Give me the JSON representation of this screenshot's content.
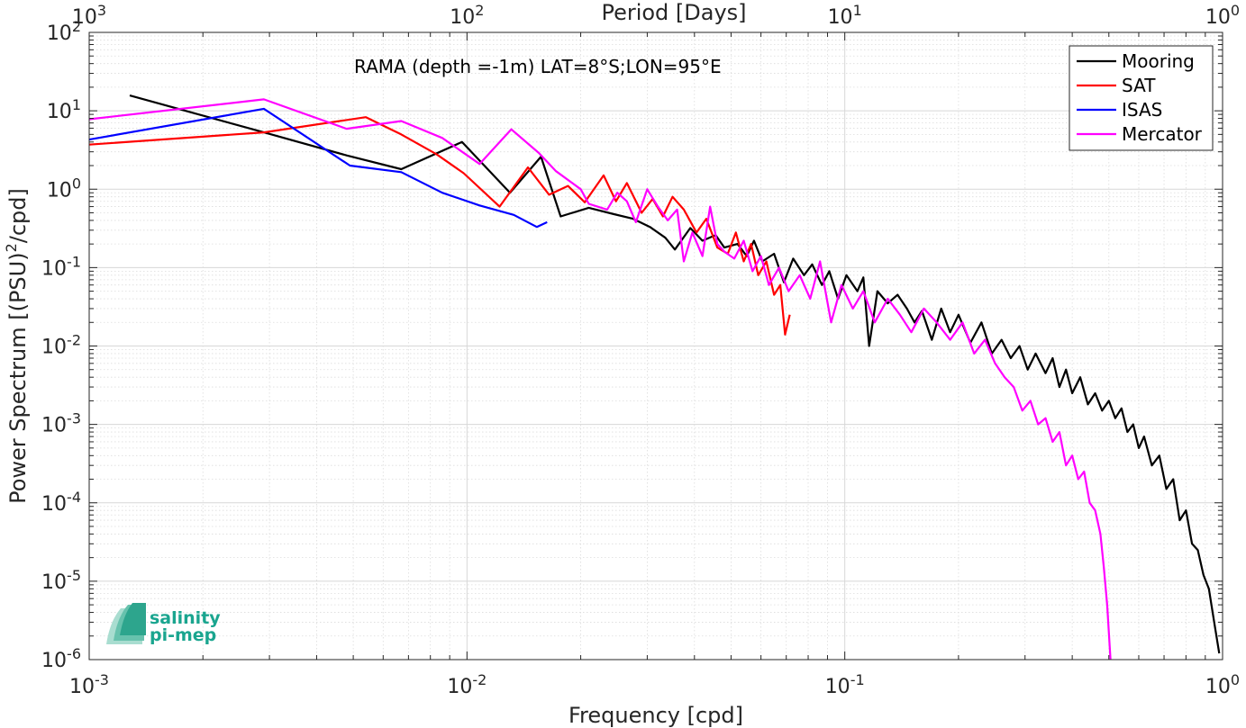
{
  "chart_data": {
    "type": "line",
    "annotation": "RAMA (depth =-1m) LAT=8°S;LON=95°E",
    "xlabel": "Frequency [cpd]",
    "ylabel": "Power Spectrum [(PSU)",
    "ylabel_sup": "2",
    "ylabel_tail": "/cpd]",
    "top_xlabel": "Period [Days]",
    "x_scale": "log",
    "y_scale": "log",
    "xlim": [
      0.001,
      1
    ],
    "ylim": [
      1e-06,
      100
    ],
    "top_xlim": [
      1000,
      1
    ],
    "grid": true,
    "legend_position": "top-right",
    "x_ticks": [
      {
        "value": 0.001,
        "base": "10",
        "exp": "-3"
      },
      {
        "value": 0.01,
        "base": "10",
        "exp": "-2"
      },
      {
        "value": 0.1,
        "base": "10",
        "exp": "-1"
      },
      {
        "value": 1,
        "base": "10",
        "exp": "0"
      }
    ],
    "top_ticks": [
      {
        "value": 0.001,
        "base": "10",
        "exp": "3"
      },
      {
        "value": 0.01,
        "base": "10",
        "exp": "2"
      },
      {
        "value": 0.1,
        "base": "10",
        "exp": "1"
      },
      {
        "value": 1,
        "base": "10",
        "exp": "0"
      }
    ],
    "y_ticks": [
      {
        "value": 100,
        "base": "10",
        "exp": "2"
      },
      {
        "value": 10,
        "base": "10",
        "exp": "1"
      },
      {
        "value": 1,
        "base": "10",
        "exp": "0"
      },
      {
        "value": 0.1,
        "base": "10",
        "exp": "-1"
      },
      {
        "value": 0.01,
        "base": "10",
        "exp": "-2"
      },
      {
        "value": 0.001,
        "base": "10",
        "exp": "-3"
      },
      {
        "value": 0.0001,
        "base": "10",
        "exp": "-4"
      },
      {
        "value": 1e-05,
        "base": "10",
        "exp": "-5"
      },
      {
        "value": 1e-06,
        "base": "10",
        "exp": "-6"
      }
    ],
    "series": [
      {
        "name": "Mooring",
        "color": "#000000",
        "points": [
          [
            0.00128,
            15.7
          ],
          [
            0.0029,
            5.3
          ],
          [
            0.0048,
            2.7
          ],
          [
            0.0067,
            1.8
          ],
          [
            0.0097,
            4.0
          ],
          [
            0.013,
            0.9
          ],
          [
            0.0157,
            2.6
          ],
          [
            0.0177,
            0.45
          ],
          [
            0.021,
            0.58
          ],
          [
            0.0245,
            0.48
          ],
          [
            0.0275,
            0.42
          ],
          [
            0.0305,
            0.33
          ],
          [
            0.0335,
            0.24
          ],
          [
            0.0355,
            0.17
          ],
          [
            0.039,
            0.32
          ],
          [
            0.042,
            0.22
          ],
          [
            0.0455,
            0.26
          ],
          [
            0.048,
            0.18
          ],
          [
            0.052,
            0.2
          ],
          [
            0.055,
            0.14
          ],
          [
            0.0575,
            0.22
          ],
          [
            0.0605,
            0.12
          ],
          [
            0.065,
            0.15
          ],
          [
            0.069,
            0.065
          ],
          [
            0.073,
            0.13
          ],
          [
            0.078,
            0.08
          ],
          [
            0.082,
            0.11
          ],
          [
            0.087,
            0.06
          ],
          [
            0.091,
            0.09
          ],
          [
            0.096,
            0.04
          ],
          [
            0.101,
            0.08
          ],
          [
            0.108,
            0.05
          ],
          [
            0.112,
            0.075
          ],
          [
            0.116,
            0.01
          ],
          [
            0.122,
            0.05
          ],
          [
            0.13,
            0.035
          ],
          [
            0.138,
            0.045
          ],
          [
            0.146,
            0.03
          ],
          [
            0.153,
            0.02
          ],
          [
            0.16,
            0.028
          ],
          [
            0.17,
            0.012
          ],
          [
            0.18,
            0.03
          ],
          [
            0.19,
            0.015
          ],
          [
            0.2,
            0.025
          ],
          [
            0.215,
            0.011
          ],
          [
            0.23,
            0.02
          ],
          [
            0.245,
            0.008
          ],
          [
            0.26,
            0.012
          ],
          [
            0.275,
            0.007
          ],
          [
            0.29,
            0.01
          ],
          [
            0.305,
            0.005
          ],
          [
            0.32,
            0.008
          ],
          [
            0.34,
            0.0045
          ],
          [
            0.355,
            0.007
          ],
          [
            0.37,
            0.003
          ],
          [
            0.385,
            0.005
          ],
          [
            0.4,
            0.0025
          ],
          [
            0.42,
            0.004
          ],
          [
            0.44,
            0.0018
          ],
          [
            0.46,
            0.0025
          ],
          [
            0.48,
            0.0015
          ],
          [
            0.5,
            0.002
          ],
          [
            0.52,
            0.0012
          ],
          [
            0.54,
            0.0016
          ],
          [
            0.56,
            0.0008
          ],
          [
            0.58,
            0.001
          ],
          [
            0.6,
            0.0005
          ],
          [
            0.62,
            0.0007
          ],
          [
            0.65,
            0.0003
          ],
          [
            0.68,
            0.0004
          ],
          [
            0.71,
            0.00015
          ],
          [
            0.74,
            0.0002
          ],
          [
            0.77,
            6e-05
          ],
          [
            0.8,
            8e-05
          ],
          [
            0.83,
            3e-05
          ],
          [
            0.86,
            2.5e-05
          ],
          [
            0.89,
            1.2e-05
          ],
          [
            0.92,
            8e-06
          ],
          [
            0.95,
            3e-06
          ],
          [
            0.98,
            1.2e-06
          ]
        ]
      },
      {
        "name": "SAT",
        "color": "#ff0000",
        "points": [
          [
            0.001,
            3.7
          ],
          [
            0.0029,
            5.3
          ],
          [
            0.0054,
            8.3
          ],
          [
            0.0067,
            5.0
          ],
          [
            0.0083,
            2.8
          ],
          [
            0.0098,
            1.6
          ],
          [
            0.0122,
            0.6
          ],
          [
            0.0145,
            1.9
          ],
          [
            0.0165,
            0.85
          ],
          [
            0.0185,
            1.1
          ],
          [
            0.0205,
            0.68
          ],
          [
            0.023,
            1.5
          ],
          [
            0.0248,
            0.7
          ],
          [
            0.0265,
            1.2
          ],
          [
            0.029,
            0.5
          ],
          [
            0.031,
            0.75
          ],
          [
            0.033,
            0.45
          ],
          [
            0.035,
            0.8
          ],
          [
            0.0375,
            0.55
          ],
          [
            0.0405,
            0.28
          ],
          [
            0.043,
            0.42
          ],
          [
            0.046,
            0.18
          ],
          [
            0.049,
            0.15
          ],
          [
            0.0515,
            0.28
          ],
          [
            0.054,
            0.12
          ],
          [
            0.0565,
            0.2
          ],
          [
            0.059,
            0.08
          ],
          [
            0.062,
            0.12
          ],
          [
            0.065,
            0.045
          ],
          [
            0.0675,
            0.06
          ],
          [
            0.0695,
            0.014
          ],
          [
            0.0715,
            0.025
          ]
        ]
      },
      {
        "name": "ISAS",
        "color": "#0000ff",
        "points": [
          [
            0.001,
            4.3
          ],
          [
            0.0029,
            10.6
          ],
          [
            0.0049,
            2.0
          ],
          [
            0.0067,
            1.65
          ],
          [
            0.0086,
            0.9
          ],
          [
            0.0108,
            0.62
          ],
          [
            0.0133,
            0.47
          ],
          [
            0.0153,
            0.33
          ],
          [
            0.0163,
            0.38
          ]
        ]
      },
      {
        "name": "Mercator",
        "color": "#ff00ff",
        "points": [
          [
            0.001,
            7.8
          ],
          [
            0.0029,
            14.0
          ],
          [
            0.0048,
            5.9
          ],
          [
            0.0067,
            7.4
          ],
          [
            0.0086,
            4.5
          ],
          [
            0.0108,
            2.1
          ],
          [
            0.0131,
            5.8
          ],
          [
            0.0155,
            2.9
          ],
          [
            0.0172,
            1.7
          ],
          [
            0.02,
            1.0
          ],
          [
            0.021,
            0.65
          ],
          [
            0.0235,
            0.55
          ],
          [
            0.025,
            0.9
          ],
          [
            0.0265,
            0.7
          ],
          [
            0.028,
            0.38
          ],
          [
            0.03,
            1.0
          ],
          [
            0.032,
            0.6
          ],
          [
            0.034,
            0.4
          ],
          [
            0.036,
            0.55
          ],
          [
            0.0375,
            0.12
          ],
          [
            0.0395,
            0.28
          ],
          [
            0.042,
            0.14
          ],
          [
            0.044,
            0.6
          ],
          [
            0.046,
            0.2
          ],
          [
            0.048,
            0.16
          ],
          [
            0.051,
            0.13
          ],
          [
            0.054,
            0.22
          ],
          [
            0.057,
            0.09
          ],
          [
            0.06,
            0.14
          ],
          [
            0.063,
            0.06
          ],
          [
            0.067,
            0.1
          ],
          [
            0.071,
            0.05
          ],
          [
            0.076,
            0.08
          ],
          [
            0.081,
            0.04
          ],
          [
            0.086,
            0.12
          ],
          [
            0.092,
            0.02
          ],
          [
            0.098,
            0.06
          ],
          [
            0.105,
            0.03
          ],
          [
            0.112,
            0.05
          ],
          [
            0.12,
            0.02
          ],
          [
            0.13,
            0.04
          ],
          [
            0.14,
            0.025
          ],
          [
            0.15,
            0.015
          ],
          [
            0.162,
            0.03
          ],
          [
            0.175,
            0.02
          ],
          [
            0.19,
            0.012
          ],
          [
            0.205,
            0.02
          ],
          [
            0.22,
            0.008
          ],
          [
            0.235,
            0.012
          ],
          [
            0.25,
            0.006
          ],
          [
            0.265,
            0.004
          ],
          [
            0.28,
            0.003
          ],
          [
            0.295,
            0.0015
          ],
          [
            0.31,
            0.002
          ],
          [
            0.325,
            0.001
          ],
          [
            0.34,
            0.0012
          ],
          [
            0.355,
            0.0006
          ],
          [
            0.37,
            0.0008
          ],
          [
            0.385,
            0.0003
          ],
          [
            0.4,
            0.0004
          ],
          [
            0.415,
            0.0002
          ],
          [
            0.43,
            0.00025
          ],
          [
            0.445,
            0.0001
          ],
          [
            0.46,
            8e-05
          ],
          [
            0.475,
            4e-05
          ],
          [
            0.485,
            1.5e-05
          ],
          [
            0.495,
            5e-06
          ],
          [
            0.505,
            1e-06
          ]
        ]
      }
    ]
  },
  "logo": {
    "line1": "salinity",
    "line2": "pi-mep",
    "color": "#1aa58f"
  }
}
